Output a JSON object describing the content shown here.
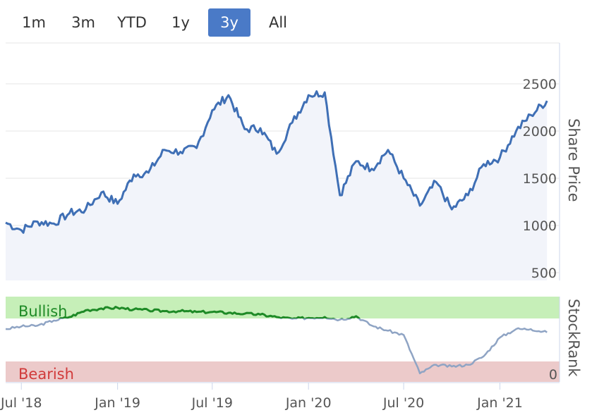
{
  "range_selector": {
    "buttons": [
      "1m",
      "3m",
      "YTD",
      "1y",
      "3y",
      "All"
    ],
    "active": "3y"
  },
  "chart_data": [
    {
      "type": "area",
      "series": [
        {
          "name": "",
          "color": "#3f6fb5"
        }
      ],
      "ylabel": "Share Price",
      "ylim": [
        500,
        2600
      ],
      "yticks": [
        500,
        1000,
        1500,
        2000,
        2500
      ],
      "x": [
        "2018-06",
        "2018-07",
        "2018-08",
        "2018-09",
        "2018-10",
        "2018-11",
        "2018-12",
        "2019-01",
        "2019-02",
        "2019-03",
        "2019-04",
        "2019-05",
        "2019-06",
        "2019-07",
        "2019-08",
        "2019-09",
        "2019-10",
        "2019-11",
        "2019-12",
        "2020-01",
        "2020-02",
        "2020-03",
        "2020-04",
        "2020-05",
        "2020-06",
        "2020-07",
        "2020-08",
        "2020-09",
        "2020-10",
        "2020-11",
        "2020-12",
        "2021-01",
        "2021-02",
        "2021-03",
        "2021-04"
      ],
      "values": [
        1030,
        950,
        1040,
        1020,
        1130,
        1170,
        1350,
        1230,
        1540,
        1560,
        1800,
        1780,
        1820,
        2220,
        2380,
        2020,
        2030,
        1760,
        2090,
        2380,
        2410,
        1320,
        1680,
        1600,
        1800,
        1500,
        1210,
        1460,
        1170,
        1320,
        1650,
        1720,
        2000,
        2170,
        2320
      ]
    },
    {
      "type": "line",
      "series": [
        {
          "name": "",
          "color": "#1e8a26"
        }
      ],
      "ylabel": "StockRank",
      "ylim": [
        0,
        100
      ],
      "bands": {
        "bullish_label": "Bullish",
        "bearish_label": "Bearish"
      },
      "ytick_label": "0",
      "x": [
        "2018-06",
        "2018-07",
        "2018-08",
        "2018-09",
        "2018-10",
        "2018-11",
        "2018-12",
        "2019-01",
        "2019-02",
        "2019-03",
        "2019-04",
        "2019-05",
        "2019-06",
        "2019-07",
        "2019-08",
        "2019-09",
        "2019-10",
        "2019-11",
        "2019-12",
        "2020-01",
        "2020-02",
        "2020-03",
        "2020-04",
        "2020-05",
        "2020-06",
        "2020-07",
        "2020-08",
        "2020-09",
        "2020-10",
        "2020-11",
        "2020-12",
        "2021-01",
        "2021-02",
        "2021-03",
        "2021-04"
      ],
      "values": [
        62,
        65,
        66,
        72,
        76,
        84,
        86,
        87,
        85,
        84,
        83,
        83,
        82,
        82,
        81,
        80,
        79,
        76,
        74,
        75,
        76,
        73,
        77,
        66,
        60,
        55,
        10,
        20,
        18,
        20,
        30,
        52,
        62,
        62,
        58
      ]
    }
  ],
  "x_axis": {
    "tick_labels": [
      "Jul '18",
      "Jan '19",
      "Jul '19",
      "Jan '20",
      "Jul '20",
      "Jan '21"
    ],
    "tick_dates": [
      "2018-07",
      "2019-01",
      "2019-07",
      "2020-01",
      "2020-07",
      "2021-01"
    ]
  },
  "colors": {
    "price_line": "#3f6fb5",
    "price_area": "#f2f4fa",
    "rank_line_above": "#1e8a26",
    "rank_line_below": "#8fa4c4",
    "bullish_band": "#c6efb8",
    "bearish_band": "#eccaca",
    "bullish_text": "#1e8a26",
    "bearish_text": "#d13a3a",
    "active_button": "#4a7ac7"
  }
}
